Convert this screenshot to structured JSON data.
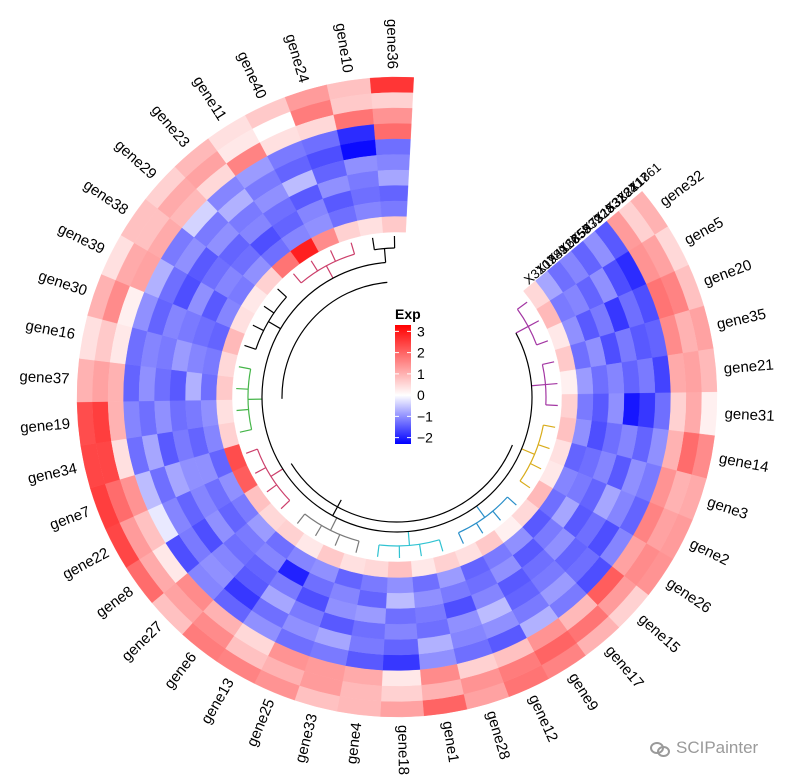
{
  "chart_data": {
    "type": "heatmap",
    "layout": "circular",
    "legend": {
      "title": "Exp",
      "ticks": [
        3,
        2,
        1,
        0,
        -1,
        -2
      ],
      "range": [
        -2.3,
        3.3
      ],
      "colors": {
        "low": "#0000ff",
        "mid": "#ffffff",
        "high": "#ff0000"
      }
    },
    "track_labels": [
      "X1861",
      "X2217",
      "X3284",
      "X1531",
      "X7328",
      "X5939",
      "X6858",
      "X4126",
      "X1989",
      "X3107"
    ],
    "genes": [
      "gene32",
      "gene5",
      "gene20",
      "gene35",
      "gene21",
      "gene31",
      "gene14",
      "gene3",
      "gene2",
      "gene26",
      "gene15",
      "gene17",
      "gene9",
      "gene12",
      "gene28",
      "gene1",
      "gene18",
      "gene4",
      "gene33",
      "gene25",
      "gene13",
      "gene6",
      "gene27",
      "gene8",
      "gene22",
      "gene7",
      "gene34",
      "gene19",
      "gene37",
      "gene16",
      "gene30",
      "gene39",
      "gene38",
      "gene29",
      "gene23",
      "gene11",
      "gene40",
      "gene24",
      "gene10",
      "gene36"
    ],
    "cluster_colors": [
      "#cc3f6b",
      "#45b549",
      "#31c3d2",
      "#2a8fc9",
      "#7a7a7a",
      "#d9ac1a",
      "#a336a3",
      "#000000"
    ],
    "values": [
      [
        1.0,
        0.5,
        0.8,
        1.2,
        0.9,
        0.2,
        1.5,
        1.1,
        1.3,
        1.4,
        0.6,
        1.0,
        1.6,
        1.8,
        1.2,
        2.0,
        1.2,
        0.9,
        0.8,
        1.4,
        1.6,
        1.7,
        0.8,
        1.9,
        2.4,
        2.5,
        2.4,
        2.3,
        1.0,
        0.4,
        1.0,
        0.4,
        0.8,
        0.6,
        0.9,
        0.4,
        0.7,
        1.3,
        0.8,
        2.6
      ],
      [
        0.6,
        1.2,
        1.6,
        1.0,
        1.2,
        1.1,
        1.9,
        1.0,
        1.2,
        1.5,
        1.3,
        1.8,
        2.0,
        1.7,
        1.4,
        1.0,
        0.6,
        0.9,
        1.3,
        1.0,
        0.8,
        1.5,
        1.2,
        1.1,
        1.3,
        1.9,
        2.4,
        2.5,
        1.2,
        0.7,
        1.5,
        1.1,
        0.8,
        1.1,
        1.2,
        0.3,
        0.0,
        1.7,
        0.7,
        0.6
      ],
      [
        1.3,
        1.4,
        1.8,
        1.5,
        1.1,
        0.6,
        1.0,
        1.4,
        1.6,
        1.2,
        2.1,
        0.9,
        1.4,
        0.8,
        0.6,
        1.5,
        0.3,
        1.1,
        1.3,
        1.4,
        0.5,
        1.0,
        1.5,
        0.3,
        0.8,
        1.4,
        0.4,
        1.0,
        1.0,
        0.3,
        0.2,
        1.2,
        1.1,
        0.9,
        0.5,
        1.6,
        0.4,
        0.5,
        1.8,
        1.4
      ],
      [
        -1.5,
        -1.9,
        -1.6,
        -1.4,
        -1.7,
        -1.3,
        -1.0,
        -1.2,
        -1.4,
        -1.1,
        -1.6,
        -1.2,
        -0.7,
        -1.5,
        -1.3,
        -1.0,
        -1.8,
        -1.5,
        -1.2,
        -1.3,
        -1.0,
        -1.4,
        -1.1,
        -1.6,
        -0.2,
        -0.6,
        -1.3,
        -1.1,
        -1.4,
        -1.3,
        -1.0,
        -0.7,
        -1.2,
        -0.4,
        -1.1,
        -0.9,
        -1.2,
        -1.3,
        -1.9,
        1.9
      ],
      [
        -1.0,
        -1.6,
        -1.3,
        -1.5,
        -1.2,
        -1.8,
        -1.4,
        -1.0,
        -1.1,
        -1.6,
        -1.3,
        -0.9,
        -1.2,
        -1.0,
        -1.1,
        -0.7,
        -1.4,
        -1.2,
        -0.8,
        -1.0,
        -1.3,
        -1.8,
        -1.0,
        -1.2,
        -1.1,
        -1.3,
        -0.8,
        -1.3,
        -1.0,
        -1.1,
        -1.4,
        -1.3,
        -1.0,
        -1.2,
        -0.7,
        -1.2,
        -1.4,
        -1.6,
        -2.2,
        -1.3
      ],
      [
        -1.4,
        -1.0,
        -1.8,
        -1.2,
        -1.4,
        -2.1,
        -1.1,
        -1.5,
        -0.8,
        -1.3,
        -1.4,
        -1.2,
        -1.4,
        -0.6,
        -1.0,
        -1.3,
        -1.1,
        -1.3,
        -1.5,
        -1.2,
        -0.8,
        -1.5,
        -1.1,
        -1.6,
        -1.4,
        -0.8,
        -1.5,
        -1.0,
        -1.3,
        -1.2,
        -1.1,
        -1.6,
        -1.5,
        -1.0,
        -1.2,
        -1.0,
        -0.6,
        -1.4,
        -1.0,
        -1.1
      ],
      [
        -1.1,
        -1.4,
        -1.2,
        -1.6,
        -1.1,
        -1.0,
        -1.3,
        -1.1,
        -1.4,
        -1.5,
        -1.0,
        -1.3,
        -1.5,
        -1.1,
        -1.6,
        -1.2,
        -1.3,
        -0.9,
        -1.0,
        -1.6,
        -1.2,
        -1.4,
        -1.3,
        -1.0,
        -1.1,
        -1.0,
        -1.2,
        -1.3,
        -1.5,
        -0.9,
        -1.2,
        -1.0,
        -1.3,
        -1.4,
        -1.1,
        -1.3,
        -1.5,
        -1.0,
        -1.2,
        -0.8
      ],
      [
        -1.3,
        -1.1,
        -1.5,
        -1.0,
        -1.3,
        -1.5,
        -1.6,
        -1.3,
        -1.2,
        -0.8,
        -1.2,
        -1.5,
        -1.0,
        -1.3,
        -1.2,
        -1.0,
        -0.6,
        -1.4,
        -1.1,
        -1.3,
        -2.0,
        -1.1,
        -1.2,
        -1.4,
        -1.3,
        -1.0,
        -1.4,
        -1.2,
        -0.7,
        -1.1,
        -1.3,
        -1.5,
        -1.1,
        -1.3,
        -1.6,
        -1.4,
        -1.1,
        -1.5,
        -1.3,
        -1.4
      ],
      [
        -0.8,
        -1.2,
        -1.0,
        -1.3,
        -0.9,
        -1.2,
        -1.0,
        -1.4,
        -1.1,
        -1.3,
        -1.5,
        -1.0,
        -1.2,
        -1.4,
        -0.9,
        -1.3,
        -1.0,
        -1.2,
        -1.4,
        -1.0,
        -1.1,
        -1.3,
        -0.9,
        -1.2,
        -1.0,
        -1.4,
        -1.1,
        -1.0,
        -1.3,
        -1.2,
        -1.4,
        -1.1,
        -1.2,
        -1.0,
        -1.3,
        -1.1,
        -1.0,
        -1.3,
        -1.1,
        -1.2
      ],
      [
        0.5,
        0.9,
        0.3,
        0.7,
        0.2,
        0.6,
        0.8,
        0.4,
        0.3,
        0.9,
        0.5,
        0.2,
        0.7,
        0.4,
        0.6,
        0.3,
        0.8,
        0.5,
        0.4,
        0.7,
        0.3,
        0.6,
        0.5,
        0.8,
        2.1,
        2.3,
        0.6,
        0.4,
        0.7,
        0.5,
        0.9,
        0.4,
        0.3,
        0.6,
        1.8,
        2.9,
        1.5,
        0.6,
        0.4,
        0.7
      ]
    ]
  },
  "watermark": {
    "text": "SCIPainter",
    "icon": "wechat-icon"
  }
}
